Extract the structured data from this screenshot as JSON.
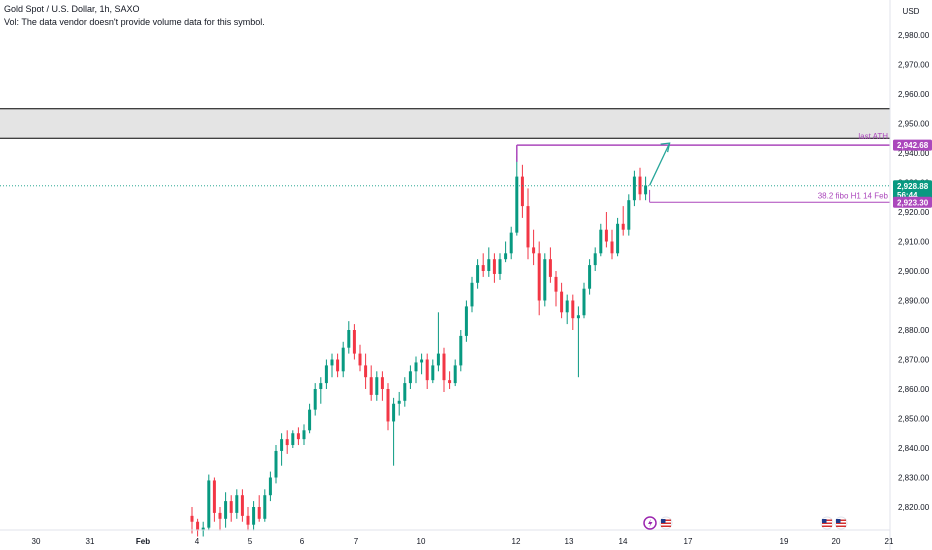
{
  "legend": {
    "symbol_line": "Gold Spot / U.S. Dollar, 1h, SAXO",
    "vol_line": "Vol: The data vendor doesn't provide volume data for this symbol."
  },
  "currency_label": "USD",
  "colors": {
    "up": "#089981",
    "down": "#f23645",
    "fib": "#ab47bc",
    "arrow": "#26a69a",
    "zone_fill": "#e4e4e4",
    "zone_border": "#000000",
    "last_price_bg": "#089981"
  },
  "chart_data": {
    "type": "candlestick",
    "symbol": "Gold Spot / U.S. Dollar",
    "timeframe": "1h",
    "source": "SAXO",
    "currency": "USD",
    "ylim": [
      2810,
      2990
    ],
    "y_ticks": [
      2820,
      2830,
      2840,
      2850,
      2860,
      2870,
      2880,
      2890,
      2900,
      2910,
      2920,
      2930,
      2940,
      2950,
      2960,
      2970,
      2980
    ],
    "y_tick_labels": [
      "2,820.00",
      "2,830.00",
      "2,840.00",
      "2,850.00",
      "2,860.00",
      "2,870.00",
      "2,880.00",
      "2,890.00",
      "2,900.00",
      "2,910.00",
      "2,920.00",
      "2,930.00",
      "2,940.00",
      "2,950.00",
      "2,960.00",
      "2,970.00",
      "2,980.00"
    ],
    "x_tick_labels": [
      "30",
      "31",
      "Feb",
      "4",
      "5",
      "6",
      "7",
      "10",
      "12",
      "13",
      "14",
      "17",
      "19",
      "20",
      "21"
    ],
    "candles": [
      {
        "t": 0,
        "o": 2817,
        "h": 2820,
        "l": 2811,
        "c": 2815
      },
      {
        "t": 1,
        "o": 2815,
        "h": 2816,
        "l": 2810,
        "c": 2812
      },
      {
        "t": 2,
        "o": 2812,
        "h": 2815,
        "l": 2810,
        "c": 2813
      },
      {
        "t": 3,
        "o": 2813,
        "h": 2831,
        "l": 2812,
        "c": 2829
      },
      {
        "t": 4,
        "o": 2829,
        "h": 2830,
        "l": 2815,
        "c": 2818
      },
      {
        "t": 5,
        "o": 2818,
        "h": 2820,
        "l": 2812,
        "c": 2816
      },
      {
        "t": 6,
        "o": 2816,
        "h": 2825,
        "l": 2813,
        "c": 2822
      },
      {
        "t": 7,
        "o": 2822,
        "h": 2824,
        "l": 2815,
        "c": 2818
      },
      {
        "t": 8,
        "o": 2818,
        "h": 2826,
        "l": 2816,
        "c": 2824
      },
      {
        "t": 9,
        "o": 2824,
        "h": 2826,
        "l": 2815,
        "c": 2817
      },
      {
        "t": 10,
        "o": 2817,
        "h": 2820,
        "l": 2812,
        "c": 2814
      },
      {
        "t": 11,
        "o": 2814,
        "h": 2822,
        "l": 2812,
        "c": 2820
      },
      {
        "t": 12,
        "o": 2820,
        "h": 2824,
        "l": 2815,
        "c": 2816
      },
      {
        "t": 13,
        "o": 2816,
        "h": 2826,
        "l": 2815,
        "c": 2824
      },
      {
        "t": 14,
        "o": 2824,
        "h": 2832,
        "l": 2822,
        "c": 2830
      },
      {
        "t": 15,
        "o": 2830,
        "h": 2841,
        "l": 2828,
        "c": 2839
      },
      {
        "t": 16,
        "o": 2839,
        "h": 2845,
        "l": 2834,
        "c": 2843
      },
      {
        "t": 17,
        "o": 2843,
        "h": 2846,
        "l": 2838,
        "c": 2841
      },
      {
        "t": 18,
        "o": 2841,
        "h": 2846,
        "l": 2840,
        "c": 2845
      },
      {
        "t": 19,
        "o": 2845,
        "h": 2847,
        "l": 2841,
        "c": 2843
      },
      {
        "t": 20,
        "o": 2843,
        "h": 2848,
        "l": 2841,
        "c": 2846
      },
      {
        "t": 21,
        "o": 2846,
        "h": 2855,
        "l": 2845,
        "c": 2853
      },
      {
        "t": 22,
        "o": 2853,
        "h": 2862,
        "l": 2851,
        "c": 2860
      },
      {
        "t": 23,
        "o": 2860,
        "h": 2864,
        "l": 2855,
        "c": 2862
      },
      {
        "t": 24,
        "o": 2862,
        "h": 2870,
        "l": 2860,
        "c": 2868
      },
      {
        "t": 25,
        "o": 2868,
        "h": 2872,
        "l": 2864,
        "c": 2870
      },
      {
        "t": 26,
        "o": 2870,
        "h": 2872,
        "l": 2864,
        "c": 2866
      },
      {
        "t": 27,
        "o": 2866,
        "h": 2876,
        "l": 2864,
        "c": 2874
      },
      {
        "t": 28,
        "o": 2874,
        "h": 2883,
        "l": 2872,
        "c": 2880
      },
      {
        "t": 29,
        "o": 2880,
        "h": 2882,
        "l": 2870,
        "c": 2872
      },
      {
        "t": 30,
        "o": 2872,
        "h": 2875,
        "l": 2866,
        "c": 2868
      },
      {
        "t": 31,
        "o": 2868,
        "h": 2872,
        "l": 2860,
        "c": 2864
      },
      {
        "t": 32,
        "o": 2864,
        "h": 2868,
        "l": 2856,
        "c": 2858
      },
      {
        "t": 33,
        "o": 2858,
        "h": 2866,
        "l": 2856,
        "c": 2864
      },
      {
        "t": 34,
        "o": 2864,
        "h": 2866,
        "l": 2856,
        "c": 2860
      },
      {
        "t": 35,
        "o": 2860,
        "h": 2862,
        "l": 2846,
        "c": 2849
      },
      {
        "t": 36,
        "o": 2849,
        "h": 2857,
        "l": 2834,
        "c": 2855
      },
      {
        "t": 37,
        "o": 2855,
        "h": 2859,
        "l": 2851,
        "c": 2856
      },
      {
        "t": 38,
        "o": 2856,
        "h": 2864,
        "l": 2854,
        "c": 2862
      },
      {
        "t": 39,
        "o": 2862,
        "h": 2868,
        "l": 2860,
        "c": 2866
      },
      {
        "t": 40,
        "o": 2866,
        "h": 2871,
        "l": 2862,
        "c": 2869
      },
      {
        "t": 41,
        "o": 2869,
        "h": 2872,
        "l": 2865,
        "c": 2870
      },
      {
        "t": 42,
        "o": 2870,
        "h": 2872,
        "l": 2860,
        "c": 2863
      },
      {
        "t": 43,
        "o": 2863,
        "h": 2870,
        "l": 2862,
        "c": 2868
      },
      {
        "t": 44,
        "o": 2868,
        "h": 2886,
        "l": 2866,
        "c": 2872
      },
      {
        "t": 45,
        "o": 2872,
        "h": 2874,
        "l": 2859,
        "c": 2863
      },
      {
        "t": 46,
        "o": 2863,
        "h": 2866,
        "l": 2860,
        "c": 2862
      },
      {
        "t": 47,
        "o": 2862,
        "h": 2870,
        "l": 2861,
        "c": 2868
      },
      {
        "t": 48,
        "o": 2868,
        "h": 2880,
        "l": 2866,
        "c": 2878
      },
      {
        "t": 49,
        "o": 2878,
        "h": 2890,
        "l": 2876,
        "c": 2888
      },
      {
        "t": 50,
        "o": 2888,
        "h": 2898,
        "l": 2886,
        "c": 2896
      },
      {
        "t": 51,
        "o": 2896,
        "h": 2904,
        "l": 2894,
        "c": 2902
      },
      {
        "t": 52,
        "o": 2902,
        "h": 2906,
        "l": 2898,
        "c": 2900
      },
      {
        "t": 53,
        "o": 2900,
        "h": 2908,
        "l": 2898,
        "c": 2904
      },
      {
        "t": 54,
        "o": 2904,
        "h": 2906,
        "l": 2896,
        "c": 2899
      },
      {
        "t": 55,
        "o": 2899,
        "h": 2906,
        "l": 2897,
        "c": 2904
      },
      {
        "t": 56,
        "o": 2904,
        "h": 2910,
        "l": 2903,
        "c": 2906
      },
      {
        "t": 57,
        "o": 2906,
        "h": 2915,
        "l": 2904,
        "c": 2913
      },
      {
        "t": 58,
        "o": 2913,
        "h": 2939,
        "l": 2912,
        "c": 2932
      },
      {
        "t": 59,
        "o": 2932,
        "h": 2936,
        "l": 2918,
        "c": 2922
      },
      {
        "t": 60,
        "o": 2922,
        "h": 2928,
        "l": 2904,
        "c": 2908
      },
      {
        "t": 61,
        "o": 2908,
        "h": 2914,
        "l": 2902,
        "c": 2906
      },
      {
        "t": 62,
        "o": 2906,
        "h": 2910,
        "l": 2885,
        "c": 2890
      },
      {
        "t": 63,
        "o": 2890,
        "h": 2906,
        "l": 2888,
        "c": 2904
      },
      {
        "t": 64,
        "o": 2904,
        "h": 2908,
        "l": 2896,
        "c": 2898
      },
      {
        "t": 65,
        "o": 2898,
        "h": 2900,
        "l": 2888,
        "c": 2893
      },
      {
        "t": 66,
        "o": 2893,
        "h": 2896,
        "l": 2884,
        "c": 2886
      },
      {
        "t": 67,
        "o": 2886,
        "h": 2892,
        "l": 2882,
        "c": 2890
      },
      {
        "t": 68,
        "o": 2890,
        "h": 2892,
        "l": 2880,
        "c": 2884
      },
      {
        "t": 69,
        "o": 2884,
        "h": 2888,
        "l": 2864,
        "c": 2885
      },
      {
        "t": 70,
        "o": 2885,
        "h": 2896,
        "l": 2884,
        "c": 2894
      },
      {
        "t": 71,
        "o": 2894,
        "h": 2904,
        "l": 2892,
        "c": 2902
      },
      {
        "t": 72,
        "o": 2902,
        "h": 2908,
        "l": 2900,
        "c": 2906
      },
      {
        "t": 73,
        "o": 2906,
        "h": 2916,
        "l": 2905,
        "c": 2914
      },
      {
        "t": 74,
        "o": 2914,
        "h": 2920,
        "l": 2908,
        "c": 2910
      },
      {
        "t": 75,
        "o": 2910,
        "h": 2914,
        "l": 2904,
        "c": 2906
      },
      {
        "t": 76,
        "o": 2906,
        "h": 2918,
        "l": 2905,
        "c": 2916
      },
      {
        "t": 77,
        "o": 2916,
        "h": 2922,
        "l": 2912,
        "c": 2914
      },
      {
        "t": 78,
        "o": 2914,
        "h": 2926,
        "l": 2912,
        "c": 2924
      },
      {
        "t": 79,
        "o": 2924,
        "h": 2934,
        "l": 2922,
        "c": 2932
      },
      {
        "t": 80,
        "o": 2932,
        "h": 2935,
        "l": 2924,
        "c": 2926
      },
      {
        "t": 81,
        "o": 2926,
        "h": 2932,
        "l": 2924,
        "c": 2929
      }
    ],
    "annotations": {
      "last_ath": {
        "label": "last ATH",
        "price": 2942.68,
        "price_label": "2,942.68"
      },
      "fibo": {
        "label": "38.2 fibo H1 14 Feb",
        "price": 2923.3,
        "price_label": "2,923.30"
      },
      "last_price": {
        "price": 2928.88,
        "price_label": "2,928.88",
        "countdown": "56:44"
      },
      "zone": {
        "from": 2945,
        "to": 2955
      }
    }
  }
}
